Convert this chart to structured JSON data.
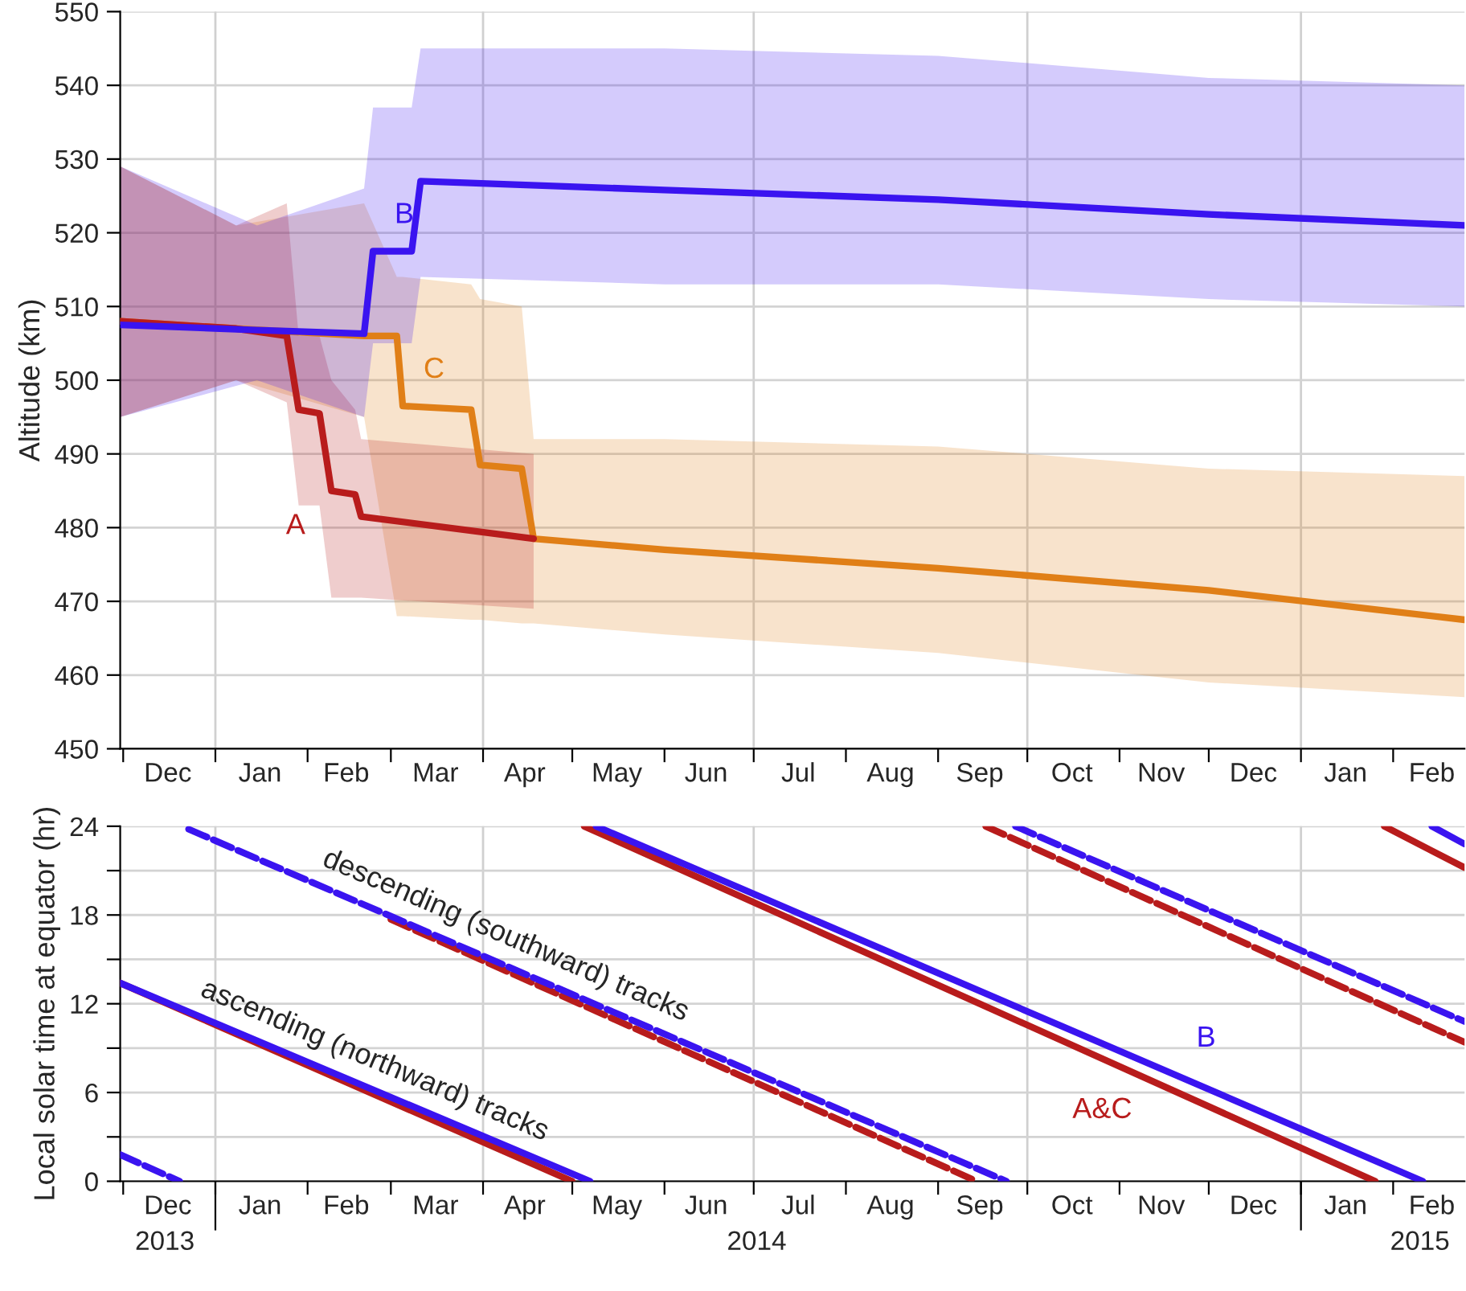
{
  "chart_data": [
    {
      "type": "line",
      "ylabel": "Altitude (km)",
      "xlim": [
        "2013-11-30",
        "2015-02-25"
      ],
      "ylim": [
        450,
        550
      ],
      "yticks": [
        450,
        460,
        470,
        480,
        490,
        500,
        510,
        520,
        530,
        540,
        550
      ],
      "xticks": [
        {
          "value": "2013-12-01",
          "label": null
        },
        {
          "value": "2014-01-01",
          "label": null
        },
        {
          "value": "2014-02-01",
          "label": null
        },
        {
          "value": "2014-03-01",
          "label": null
        },
        {
          "value": "2014-04-01",
          "label": null
        },
        {
          "value": "2014-05-01",
          "label": null
        },
        {
          "value": "2014-06-01",
          "label": null
        },
        {
          "value": "2014-07-01",
          "label": null
        },
        {
          "value": "2014-08-01",
          "label": null
        },
        {
          "value": "2014-09-01",
          "label": null
        },
        {
          "value": "2014-10-01",
          "label": null
        },
        {
          "value": "2014-11-01",
          "label": null
        },
        {
          "value": "2014-12-01",
          "label": null
        },
        {
          "value": "2015-01-01",
          "label": null
        },
        {
          "value": "2015-02-01",
          "label": null
        },
        {
          "value": "2013-12-16",
          "label": "Dec"
        },
        {
          "value": "2014-01-16",
          "label": "Jan"
        },
        {
          "value": "2014-02-14",
          "label": "Feb"
        },
        {
          "value": "2014-03-16",
          "label": "Mar"
        },
        {
          "value": "2014-04-15",
          "label": "Apr"
        },
        {
          "value": "2014-05-16",
          "label": "May"
        },
        {
          "value": "2014-06-15",
          "label": "Jun"
        },
        {
          "value": "2014-07-16",
          "label": "Jul"
        },
        {
          "value": "2014-08-16",
          "label": "Aug"
        },
        {
          "value": "2014-09-15",
          "label": "Sep"
        },
        {
          "value": "2014-10-16",
          "label": "Oct"
        },
        {
          "value": "2014-11-15",
          "label": "Nov"
        },
        {
          "value": "2014-12-16",
          "label": "Dec"
        },
        {
          "value": "2015-01-16",
          "label": "Jan"
        },
        {
          "value": "2015-02-14",
          "label": "Feb"
        }
      ],
      "grid": "y",
      "ref_lines": [
        {
          "axis": "x",
          "value": "2014-01-01",
          "color": "#d0d0d0"
        },
        {
          "axis": "x",
          "value": "2014-04-01",
          "color": "#d0d0d0"
        },
        {
          "axis": "x",
          "value": "2014-07-01",
          "color": "#d0d0d0"
        },
        {
          "axis": "x",
          "value": "2014-10-01",
          "color": "#d0d0d0"
        },
        {
          "axis": "x",
          "value": "2015-01-01",
          "color": "#d0d0d0"
        }
      ],
      "series": [
        {
          "name": "C",
          "color": "#e07f17",
          "x": [
            "2013-11-30",
            "2014-01-08",
            "2014-02-20",
            "2014-03-03",
            "2014-03-05",
            "2014-03-28",
            "2014-03-31",
            "2014-04-14",
            "2014-04-18",
            "2014-06-01",
            "2014-09-01",
            "2014-12-01",
            "2015-02-25"
          ],
          "values": [
            508,
            507,
            506,
            506,
            496.5,
            496,
            488.5,
            488,
            478.5,
            477,
            474.5,
            471.5,
            467.5
          ],
          "lower": [
            495,
            500,
            495,
            468,
            468,
            467.5,
            467.5,
            467,
            467,
            465.5,
            463,
            459,
            457
          ],
          "upper": [
            529,
            521,
            524,
            514,
            514,
            513,
            511,
            510,
            492,
            492,
            491,
            488,
            487
          ]
        },
        {
          "name": "A",
          "color": "#b81c1c",
          "x": [
            "2013-11-30",
            "2014-01-08",
            "2014-01-25",
            "2014-01-29",
            "2014-02-05",
            "2014-02-09",
            "2014-02-17",
            "2014-02-19",
            "2014-04-18"
          ],
          "values": [
            508,
            507,
            506,
            496,
            495.5,
            485,
            484.5,
            481.5,
            478.5
          ],
          "lower": [
            495,
            500,
            497,
            483,
            483,
            470.5,
            470.5,
            470.5,
            469
          ],
          "upper": [
            529,
            521,
            524,
            506,
            506,
            500,
            496,
            492,
            490
          ]
        },
        {
          "name": "B",
          "color": "#3a14f0",
          "x": [
            "2013-11-30",
            "2014-01-15",
            "2014-02-20",
            "2014-02-23",
            "2014-03-08",
            "2014-03-11",
            "2014-06-01",
            "2014-09-01",
            "2014-12-01",
            "2015-02-25"
          ],
          "values": [
            507.5,
            506.8,
            506.3,
            517.5,
            517.5,
            527,
            525.8,
            524.5,
            522.5,
            521
          ],
          "lower": [
            495,
            500,
            495,
            505,
            505,
            514,
            513,
            513,
            511,
            510
          ],
          "upper": [
            529,
            521,
            526,
            537,
            537,
            545,
            545,
            544,
            541,
            540
          ]
        }
      ]
    },
    {
      "type": "line",
      "ylabel": "Local solar time at equator (hr)",
      "xlim": [
        "2013-11-30",
        "2015-02-25"
      ],
      "ylim": [
        0,
        24
      ],
      "yticks": [
        0,
        {
          "value": 3,
          "label": null
        },
        6,
        {
          "value": 9,
          "label": null
        },
        12,
        {
          "value": 15,
          "label": null
        },
        18,
        {
          "value": 21,
          "label": null
        },
        24
      ],
      "xticks": [
        {
          "value": "2013-12-01",
          "label": null
        },
        {
          "value": "2014-01-01",
          "label": null
        },
        {
          "value": "2014-02-01",
          "label": null
        },
        {
          "value": "2014-03-01",
          "label": null
        },
        {
          "value": "2014-04-01",
          "label": null
        },
        {
          "value": "2014-05-01",
          "label": null
        },
        {
          "value": "2014-06-01",
          "label": null
        },
        {
          "value": "2014-07-01",
          "label": null
        },
        {
          "value": "2014-08-01",
          "label": null
        },
        {
          "value": "2014-09-01",
          "label": null
        },
        {
          "value": "2014-10-01",
          "label": null
        },
        {
          "value": "2014-11-01",
          "label": null
        },
        {
          "value": "2014-12-01",
          "label": null
        },
        {
          "value": "2015-01-01",
          "label": null
        },
        {
          "value": "2015-02-01",
          "label": null
        },
        {
          "value": "2013-12-16",
          "label": "Dec"
        },
        {
          "value": "2014-01-16",
          "label": "Jan"
        },
        {
          "value": "2014-02-14",
          "label": "Feb"
        },
        {
          "value": "2014-03-16",
          "label": "Mar"
        },
        {
          "value": "2014-04-15",
          "label": "Apr"
        },
        {
          "value": "2014-05-16",
          "label": "May"
        },
        {
          "value": "2014-06-15",
          "label": "Jun"
        },
        {
          "value": "2014-07-16",
          "label": "Jul"
        },
        {
          "value": "2014-08-16",
          "label": "Aug"
        },
        {
          "value": "2014-09-15",
          "label": "Sep"
        },
        {
          "value": "2014-10-16",
          "label": "Oct"
        },
        {
          "value": "2014-11-15",
          "label": "Nov"
        },
        {
          "value": "2014-12-16",
          "label": "Dec"
        },
        {
          "value": "2015-01-16",
          "label": "Jan"
        },
        {
          "value": "2015-02-14",
          "label": "Feb"
        }
      ],
      "x2lim": [
        "2013-11-30",
        "2015-02-25"
      ],
      "x2ticks": [
        {
          "value": "2014-01-01",
          "label": null
        },
        {
          "value": "2015-01-01",
          "label": null
        },
        {
          "value": "2013-12-15",
          "label": "2013"
        },
        {
          "value": "2014-07-02",
          "label": "2014"
        },
        {
          "value": "2015-02-10",
          "label": "2015"
        }
      ],
      "grid": "y",
      "ref_lines": [
        {
          "axis": "x",
          "value": "2014-01-01",
          "color": "#d0d0d0"
        },
        {
          "axis": "x",
          "value": "2014-04-01",
          "color": "#d0d0d0"
        },
        {
          "axis": "x",
          "value": "2014-07-01",
          "color": "#d0d0d0"
        },
        {
          "axis": "x",
          "value": "2014-10-01",
          "color": "#d0d0d0"
        },
        {
          "axis": "x",
          "value": "2015-01-01",
          "color": "#d0d0d0"
        }
      ],
      "series": [
        {
          "color": "#3a14f0",
          "line_style": "dashed",
          "x": [
            "2013-11-30",
            "2013-12-20"
          ],
          "values": [
            1.8,
            0
          ]
        },
        {
          "color": "#b81c1c",
          "line_style": "solid",
          "x": [
            "2013-11-30",
            "2014-05-01"
          ],
          "values": [
            13.4,
            0
          ]
        },
        {
          "color": "#3a14f0",
          "line_style": "solid",
          "x": [
            "2013-11-30",
            "2014-05-07"
          ],
          "values": [
            13.4,
            0
          ]
        },
        {
          "color": "#b81c1c",
          "line_style": "dashed",
          "x": [
            "2014-03-01",
            "2014-09-14"
          ],
          "values": [
            17.7,
            0
          ]
        },
        {
          "color": "#3a14f0",
          "line_style": "dashed",
          "x": [
            "2013-12-23",
            "2014-09-24"
          ],
          "values": [
            23.8,
            0
          ]
        },
        {
          "name": "A&C",
          "color": "#b81c1c",
          "line_style": "solid",
          "x": [
            "2014-05-05",
            "2015-01-26"
          ],
          "values": [
            24,
            0
          ]
        },
        {
          "name": "B",
          "color": "#3a14f0",
          "line_style": "solid",
          "x": [
            "2014-05-09",
            "2015-02-11"
          ],
          "values": [
            24,
            0
          ]
        },
        {
          "color": "#b81c1c",
          "line_style": "dashed",
          "x": [
            "2014-09-17",
            "2015-02-25"
          ],
          "values": [
            24,
            9.4
          ]
        },
        {
          "color": "#3a14f0",
          "line_style": "dashed",
          "x": [
            "2014-09-27",
            "2015-02-25"
          ],
          "values": [
            24,
            10.8
          ]
        },
        {
          "color": "#b81c1c",
          "line_style": "solid",
          "x": [
            "2015-01-29",
            "2015-02-25"
          ],
          "values": [
            24,
            21.2
          ]
        },
        {
          "color": "#3a14f0",
          "line_style": "solid",
          "x": [
            "2015-02-14",
            "2015-02-25"
          ],
          "values": [
            24,
            22.8
          ]
        }
      ],
      "annotations": [
        {
          "text": "descending (southward) tracks",
          "x": "2014-04-05",
          "y": 14.9
        },
        {
          "text": "ascending (northward) tracks",
          "x": "2014-02-20",
          "y": 6.45
        }
      ]
    }
  ]
}
